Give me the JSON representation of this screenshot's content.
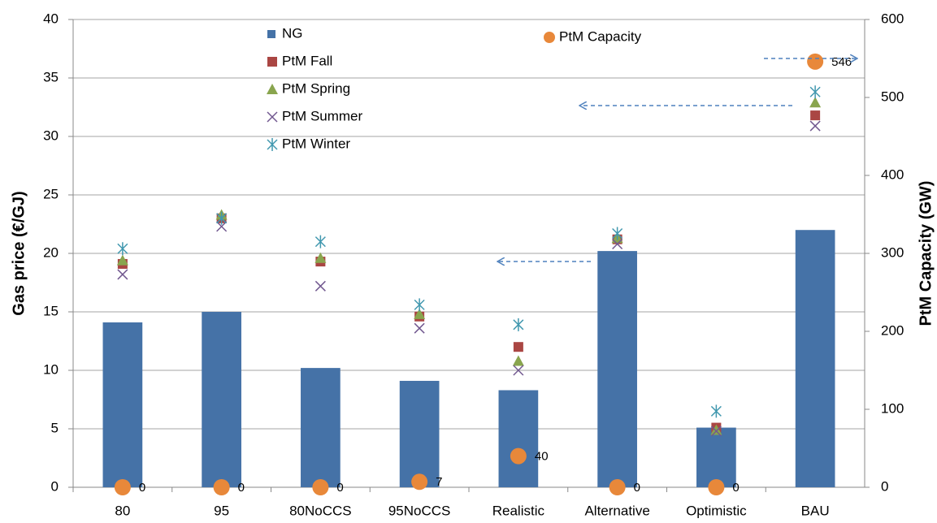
{
  "chart_data": {
    "type": "bar",
    "categories": [
      "80",
      "95",
      "80NoCCS",
      "95NoCCS",
      "Realistic",
      "Alternative",
      "Optimistic",
      "BAU"
    ],
    "ylabel": "Gas price (€/GJ)",
    "y2label": "PtM Capacity (GW)",
    "ylim": [
      0,
      40
    ],
    "yticks": [
      0,
      5,
      10,
      15,
      20,
      25,
      30,
      35,
      40
    ],
    "y2lim": [
      0,
      600
    ],
    "y2ticks": [
      0,
      100,
      200,
      300,
      400,
      500,
      600
    ],
    "grid": true,
    "series": [
      {
        "name": "NG",
        "type": "bar",
        "color": "#4572a7",
        "values": [
          14.1,
          15.0,
          10.2,
          9.1,
          8.3,
          20.2,
          5.1,
          22.0
        ]
      },
      {
        "name": "PtM Fall",
        "type": "scatter",
        "marker": "square",
        "color": "#aa4643",
        "values": [
          19.1,
          23.0,
          19.3,
          14.6,
          12.0,
          21.2,
          5.1,
          31.8
        ]
      },
      {
        "name": "PtM Spring",
        "type": "scatter",
        "marker": "triangle",
        "color": "#89a54e",
        "values": [
          19.4,
          23.3,
          19.6,
          14.8,
          10.8,
          21.3,
          4.9,
          32.9
        ]
      },
      {
        "name": "PtM Summer",
        "type": "scatter",
        "marker": "x",
        "color": "#71588f",
        "values": [
          18.2,
          22.3,
          17.2,
          13.6,
          10.0,
          20.8,
          4.8,
          30.9
        ]
      },
      {
        "name": "PtM Winter",
        "type": "scatter",
        "marker": "star",
        "color": "#4198af",
        "values": [
          20.4,
          23.0,
          21.0,
          15.6,
          13.9,
          21.7,
          6.5,
          33.8
        ]
      },
      {
        "name": "PtM Capacity",
        "type": "scatter",
        "marker": "circle",
        "color": "#e8883a",
        "axis": "y2",
        "data_labels": true,
        "values": [
          0,
          0,
          0,
          7,
          40,
          0,
          0,
          546
        ]
      }
    ]
  }
}
